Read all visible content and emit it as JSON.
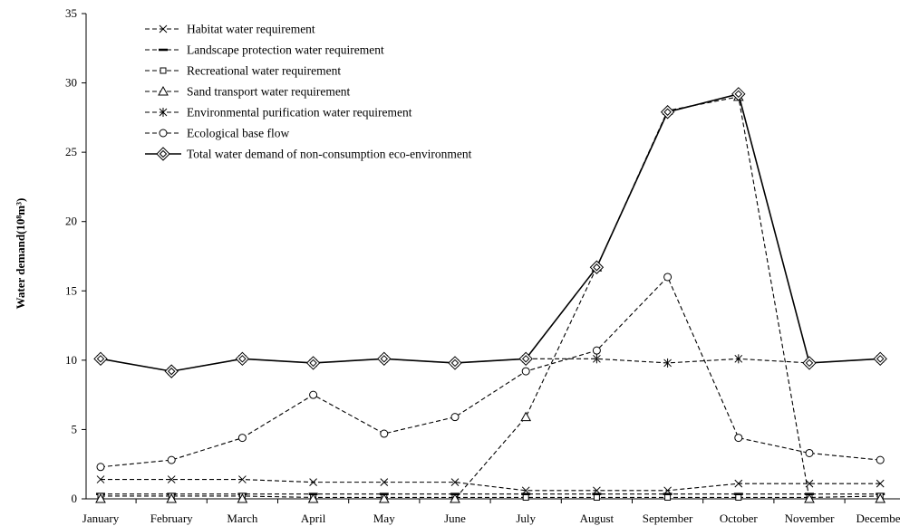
{
  "chart_data": {
    "type": "line",
    "title": "",
    "xlabel": "",
    "ylabel": "Water demand(10⁸m³)",
    "ylim": [
      0,
      35
    ],
    "yticks": [
      0,
      5,
      10,
      15,
      20,
      25,
      30,
      35
    ],
    "grid": false,
    "legend_position": "top-left",
    "categories": [
      "January",
      "February",
      "March",
      "April",
      "May",
      "June",
      "July",
      "August",
      "September",
      "October",
      "November",
      "December"
    ],
    "series": [
      {
        "name": "Habitat water requirement",
        "marker": "x",
        "dash": "dashed",
        "values": [
          1.4,
          1.4,
          1.4,
          1.2,
          1.2,
          1.2,
          0.6,
          0.6,
          0.6,
          1.1,
          1.1,
          1.1
        ]
      },
      {
        "name": "Landscape protection water requirement",
        "marker": "dash",
        "dash": "dashed",
        "values": [
          0.35,
          0.35,
          0.35,
          0.35,
          0.35,
          0.35,
          0.35,
          0.35,
          0.35,
          0.35,
          0.35,
          0.35
        ]
      },
      {
        "name": "Recreational water requirement",
        "marker": "square",
        "dash": "dashed",
        "values": [
          0.2,
          0.2,
          0.2,
          0.1,
          0.1,
          0.1,
          0.1,
          0.1,
          0.1,
          0.1,
          0.1,
          0.2
        ]
      },
      {
        "name": "Sand transport water requirement",
        "marker": "triangle",
        "dash": "dashed",
        "values": [
          0,
          0,
          0,
          0,
          0,
          0,
          5.9,
          16.7,
          28.0,
          29.0,
          0,
          0
        ]
      },
      {
        "name": "Environmental purification water requirement",
        "marker": "asterisk",
        "dash": "dashed",
        "values": [
          10.1,
          9.2,
          10.1,
          9.8,
          10.1,
          9.8,
          10.1,
          10.1,
          9.8,
          10.1,
          9.8,
          10.1
        ]
      },
      {
        "name": "Ecological base flow",
        "marker": "circle",
        "dash": "dashed",
        "values": [
          2.3,
          2.8,
          4.4,
          7.5,
          4.7,
          5.9,
          9.2,
          10.7,
          16.0,
          4.4,
          3.3,
          2.8
        ]
      },
      {
        "name": "Total water demand of non-consumption eco-environment",
        "marker": "diamond",
        "dash": "solid",
        "values": [
          10.1,
          9.2,
          10.1,
          9.8,
          10.1,
          9.8,
          10.1,
          16.7,
          27.9,
          29.2,
          9.8,
          10.1
        ]
      }
    ]
  }
}
